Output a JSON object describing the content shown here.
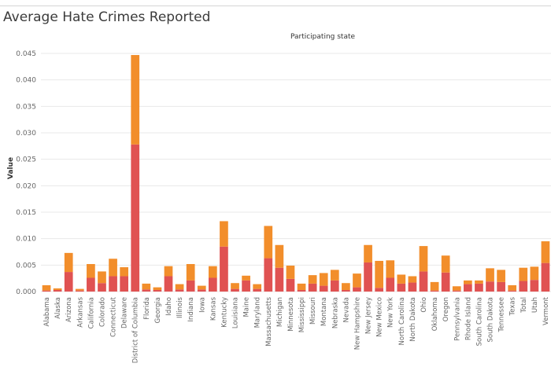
{
  "title": "Average Hate Crimes Reported",
  "colors": {
    "series1": "#e05252",
    "series2": "#f28e2b",
    "grid": "#e8e8e8"
  },
  "chart_data": {
    "type": "bar",
    "stacked": true,
    "title": "Average Hate Crimes Reported",
    "column_header": "Participating state",
    "ylabel": "Value",
    "xlabel": "",
    "ylim": [
      0,
      0.045
    ],
    "yticks": [
      0.0,
      0.005,
      0.01,
      0.015,
      0.02,
      0.025,
      0.03,
      0.035,
      0.04,
      0.045
    ],
    "ytick_labels": [
      "0.000",
      "0.005",
      "0.010",
      "0.015",
      "0.020",
      "0.025",
      "0.030",
      "0.035",
      "0.040",
      "0.045"
    ],
    "categories": [
      "Alabama",
      "Alaska",
      "Arizona",
      "Arkansas",
      "California",
      "Colorado",
      "Connecticut",
      "Delaware",
      "District of Columbia",
      "Florida",
      "Georgia",
      "Idaho",
      "Illinois",
      "Indiana",
      "Iowa",
      "Kansas",
      "Kentucky",
      "Louisiana",
      "Maine",
      "Maryland",
      "Massachusetts",
      "Michigan",
      "Minnesota",
      "Mississippi",
      "Missouri",
      "Montana",
      "Nebraska",
      "Nevada",
      "New Hampshire",
      "New Jersey",
      "New Mexico",
      "New York",
      "North Carolina",
      "North Dakota",
      "Ohio",
      "Oklahoma",
      "Oregon",
      "Pennsylvania",
      "Rhode Island",
      "South Carolina",
      "South Dakota",
      "Tennessee",
      "Texas",
      "Total",
      "Utah",
      "Vermont"
    ],
    "series": [
      {
        "values": [
          0.0002,
          0.0003,
          0.0037,
          0.0002,
          0.0026,
          0.0016,
          0.0029,
          0.0029,
          0.0278,
          0.0004,
          0.0003,
          0.0029,
          0.0004,
          0.0021,
          0.0004,
          0.0026,
          0.0085,
          0.0005,
          0.0021,
          0.0005,
          0.0063,
          0.0045,
          0.0024,
          0.0003,
          0.0015,
          0.0011,
          0.0021,
          0.0003,
          0.0008,
          0.0055,
          0.0007,
          0.0026,
          0.0015,
          0.0017,
          0.0038,
          0.0002,
          0.0036,
          0.0002,
          0.0014,
          0.0015,
          0.0019,
          0.0018,
          0.0002,
          0.002,
          0.0022,
          0.0054
        ]
      },
      {
        "values": [
          0.001,
          0.0003,
          0.0036,
          0.0003,
          0.0026,
          0.0022,
          0.0033,
          0.0017,
          0.0169,
          0.0011,
          0.0005,
          0.0019,
          0.001,
          0.0031,
          0.0007,
          0.0022,
          0.0048,
          0.0011,
          0.0009,
          0.0009,
          0.0061,
          0.0043,
          0.0025,
          0.0012,
          0.0016,
          0.0024,
          0.002,
          0.0013,
          0.0026,
          0.0033,
          0.0051,
          0.0033,
          0.0017,
          0.0012,
          0.0048,
          0.0016,
          0.0032,
          0.0008,
          0.0007,
          0.0006,
          0.0025,
          0.0023,
          0.001,
          0.0025,
          0.0025,
          0.0041
        ]
      }
    ]
  }
}
